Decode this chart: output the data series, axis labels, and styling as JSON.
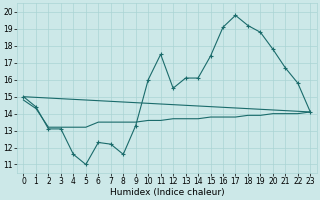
{
  "title": "",
  "xlabel": "Humidex (Indice chaleur)",
  "bg_color": "#cce8e8",
  "line_color": "#1a6b6b",
  "xlim": [
    -0.5,
    23.5
  ],
  "ylim": [
    10.5,
    20.5
  ],
  "xticks": [
    0,
    1,
    2,
    3,
    4,
    5,
    6,
    7,
    8,
    9,
    10,
    11,
    12,
    13,
    14,
    15,
    16,
    17,
    18,
    19,
    20,
    21,
    22,
    23
  ],
  "yticks": [
    11,
    12,
    13,
    14,
    15,
    16,
    17,
    18,
    19,
    20
  ],
  "series1_x": [
    0,
    1,
    2,
    3,
    4,
    5,
    6,
    7,
    8,
    9,
    10,
    11,
    12,
    13,
    14,
    15,
    16,
    17,
    18,
    19,
    20,
    21,
    22,
    23
  ],
  "series1_y": [
    15.0,
    14.4,
    13.1,
    13.1,
    11.6,
    11.0,
    12.3,
    12.2,
    11.6,
    13.3,
    16.0,
    17.5,
    15.5,
    16.1,
    16.1,
    17.4,
    19.1,
    19.8,
    19.2,
    18.8,
    17.8,
    16.7,
    15.8,
    14.1
  ],
  "series2_x": [
    0,
    1,
    2,
    3,
    4,
    5,
    6,
    7,
    8,
    9,
    10,
    11,
    12,
    13,
    14,
    15,
    16,
    17,
    18,
    19,
    20,
    21,
    22,
    23
  ],
  "series2_y": [
    14.8,
    14.3,
    13.2,
    13.2,
    13.2,
    13.2,
    13.5,
    13.5,
    13.5,
    13.5,
    13.6,
    13.6,
    13.7,
    13.7,
    13.7,
    13.8,
    13.8,
    13.8,
    13.9,
    13.9,
    14.0,
    14.0,
    14.0,
    14.1
  ],
  "series3_x": [
    0,
    23
  ],
  "series3_y": [
    15.0,
    14.1
  ],
  "grid_color": "#aad4d4",
  "tick_fontsize": 5.5,
  "xlabel_fontsize": 6.5
}
